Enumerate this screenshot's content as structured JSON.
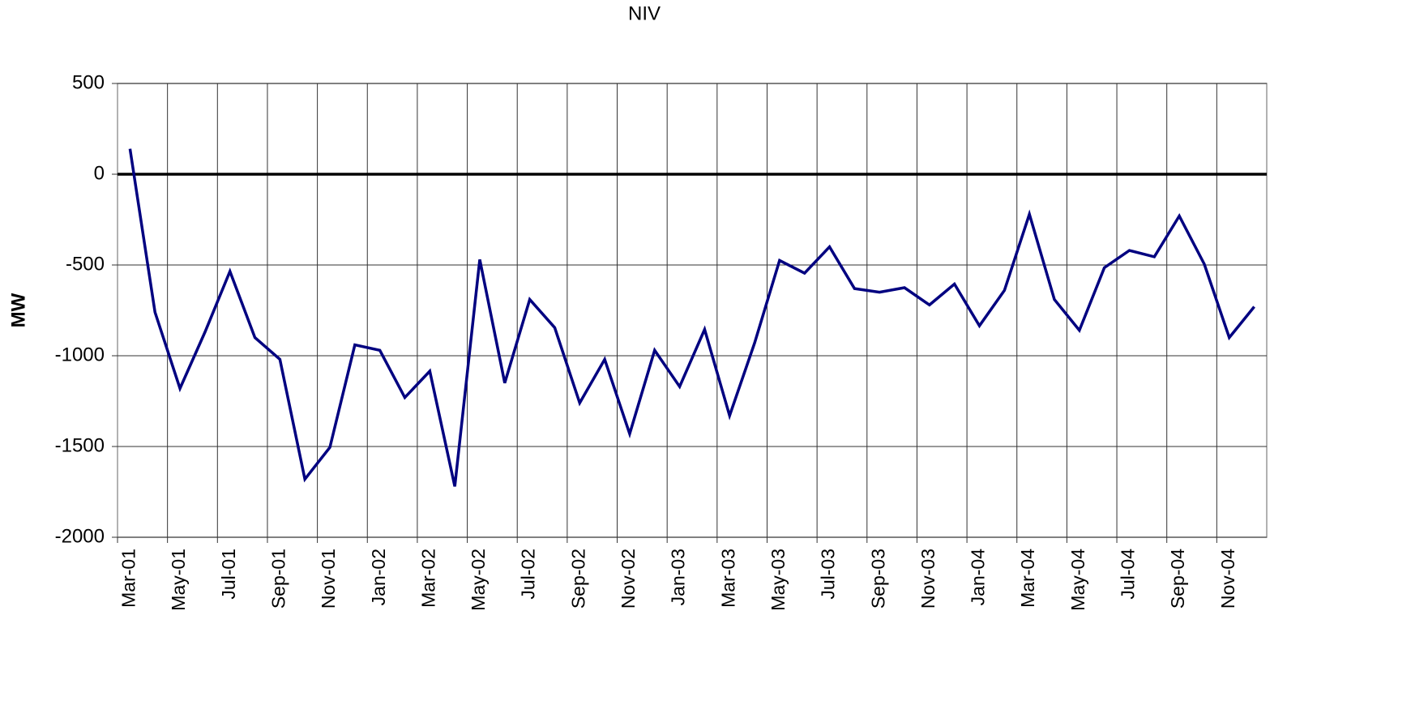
{
  "chart_data": {
    "type": "line",
    "title": "NIV",
    "y_label": "MW",
    "categories": [
      "Mar-01",
      null,
      "May-01",
      null,
      "Jul-01",
      null,
      "Sep-01",
      null,
      "Nov-01",
      null,
      "Jan-02",
      null,
      "Mar-02",
      null,
      "May-02",
      null,
      "Jul-02",
      null,
      "Sep-02",
      null,
      "Nov-02",
      null,
      "Jan-03",
      null,
      "Mar-03",
      null,
      "May-03",
      null,
      "Jul-03",
      null,
      "Sep-03",
      null,
      "Nov-03",
      null,
      "Jan-04",
      null,
      "Mar-04",
      null,
      "May-04",
      null,
      "Jul-04",
      null,
      "Sep-04",
      null,
      "Nov-04",
      null
    ],
    "series": [
      {
        "name": "NIV",
        "color": "#000080",
        "values": [
          140,
          -760,
          -1180,
          -870,
          -535,
          -900,
          -1020,
          -1680,
          -1505,
          -940,
          -970,
          -1230,
          -1085,
          -1720,
          -470,
          -1150,
          -690,
          -845,
          -1260,
          -1020,
          -1430,
          -970,
          -1170,
          -855,
          -1330,
          -930,
          -475,
          -545,
          -400,
          -630,
          -650,
          -625,
          -720,
          -605,
          -835,
          -640,
          -220,
          -690,
          -860,
          -515,
          -420,
          -455,
          -230,
          -495,
          -900,
          -730
        ]
      }
    ],
    "ylim": [
      -2000,
      500
    ],
    "yticks": [
      -2000,
      -1500,
      -1000,
      -500,
      0,
      500
    ],
    "grid": true
  }
}
